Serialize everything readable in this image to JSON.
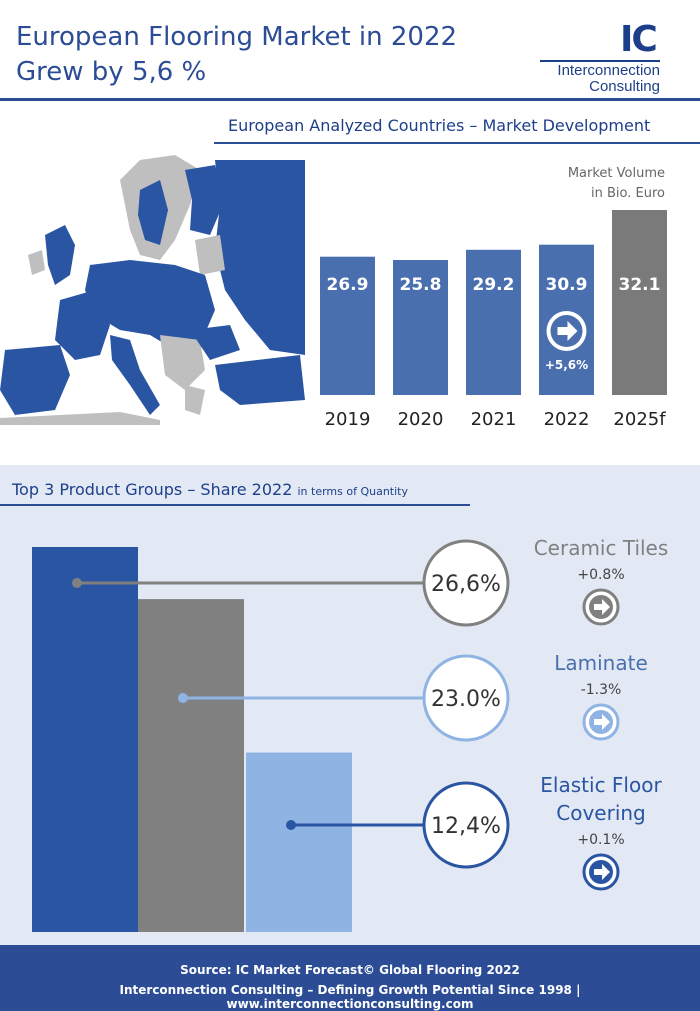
{
  "header": {
    "title_line1": "European Flooring Market in 2022",
    "title_line2": "Grew by 5,6 %",
    "logo_mark": "IC",
    "logo_text1": "Interconnection",
    "logo_text2": "Consulting"
  },
  "section1": {
    "title": "European Analyzed Countries – Market Development",
    "unit_line1": "Market Volume",
    "unit_line2": "in Bio. Euro"
  },
  "section2": {
    "title": "Top 3 Product Groups – Share 2022",
    "subtitle": "in terms of Quantity"
  },
  "footer": {
    "line1": "Source: IC Market Forecast© Global Flooring 2022",
    "line2": "Interconnection Consulting – Defining Growth Potential Since 1998 | www.interconnectionconsulting.com"
  },
  "colors": {
    "brand_blue": "#2c4d96",
    "bar_blue": "#4a6fae",
    "forecast_gray": "#7a7a7a",
    "dark_blue": "#2a55a2",
    "gray": "#808080",
    "light_blue": "#8fb4e3",
    "map_blue": "#2a55a2",
    "map_gray": "#bfbfbf"
  },
  "chart_data": [
    {
      "type": "bar",
      "categories": [
        "2019",
        "2020",
        "2021",
        "2022",
        "2025f"
      ],
      "values": [
        26.9,
        25.8,
        29.2,
        30.9,
        32.1
      ],
      "value_labels": [
        "26.9",
        "25.8",
        "29.2",
        "30.9",
        "32.1"
      ],
      "title": "European Analyzed Countries – Market Development",
      "ylabel": "Market Volume in Bio. Euro",
      "annotations": [
        {
          "category": "2022",
          "text": "+5,6%",
          "icon": "arrow-right-circle-icon"
        }
      ],
      "highlight": {
        "2025f": "forecast"
      }
    },
    {
      "type": "bar",
      "categories": [
        "Ceramic Tiles",
        "Laminate",
        "Elastic Floor Covering"
      ],
      "values": [
        26.6,
        23.0,
        12.4
      ],
      "value_labels": [
        "26,6%",
        "23.0%",
        "12,4%"
      ],
      "changes": [
        "+0.8%",
        "-1.3%",
        "+0.1%"
      ],
      "label_lines": [
        [
          "Ceramic Tiles"
        ],
        [
          "Laminate"
        ],
        [
          "Elastic Floor",
          "Covering"
        ]
      ],
      "title": "Top 3 Product Groups – Share 2022",
      "subtitle": "in terms of Quantity"
    }
  ]
}
